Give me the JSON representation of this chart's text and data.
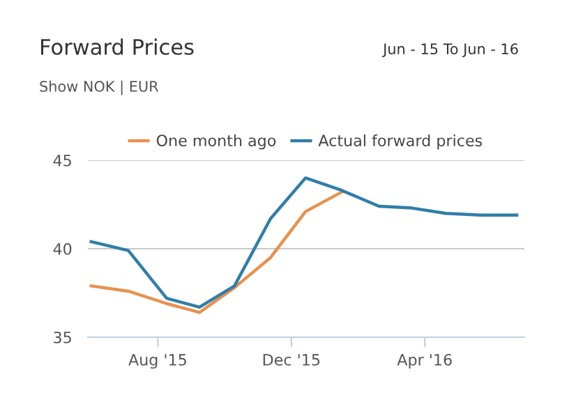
{
  "chart_data": {
    "type": "line",
    "title": "Forward Prices",
    "subtitle": "Show NOK | EUR",
    "annotations": [
      "Jun - 15 To Jun - 16"
    ],
    "x": [
      "2015-06-01",
      "2015-07-05",
      "2015-08-09",
      "2015-09-08",
      "2015-10-10",
      "2015-11-12",
      "2015-12-14",
      "2016-01-16",
      "2016-02-19",
      "2016-03-20",
      "2016-04-20",
      "2016-05-22",
      "2016-06-24"
    ],
    "series": [
      {
        "name": "One month ago",
        "color": "#e8914f",
        "values": [
          37.9,
          37.6,
          36.9,
          36.4,
          37.8,
          39.5,
          42.1,
          43.2,
          null,
          null,
          null,
          null,
          null
        ]
      },
      {
        "name": "Actual forward prices",
        "color": "#2f7ea8",
        "values": [
          40.4,
          39.9,
          37.2,
          36.7,
          37.9,
          41.7,
          44.0,
          43.3,
          42.4,
          42.3,
          42.0,
          41.9,
          41.9
        ]
      }
    ],
    "xlim": [
      "2015-05-29",
      "2016-07-01"
    ],
    "xticks": [
      {
        "value": "2015-08-01",
        "label": "Aug '15"
      },
      {
        "value": "2015-12-01",
        "label": "Dec '15"
      },
      {
        "value": "2016-04-01",
        "label": "Apr '16"
      }
    ],
    "ylim": [
      35,
      45
    ],
    "yticks": [
      35,
      40,
      45
    ],
    "grid": "y",
    "legend": "top",
    "marker": "none",
    "line_style": "solid"
  }
}
